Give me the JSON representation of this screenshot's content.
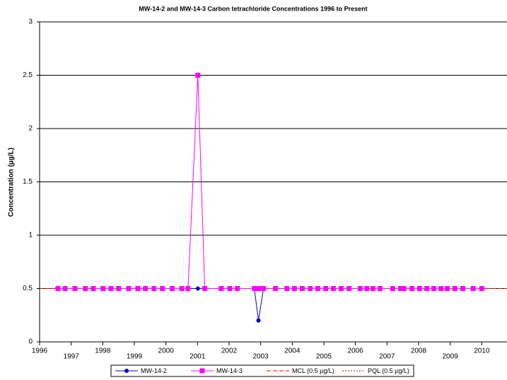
{
  "chart_data": {
    "type": "line",
    "title": "MW-14-2 and MW-14-3 Carbon tetrachloride Concentrations 1996 to Present",
    "y_label": "Concentration (µg/L)",
    "x": [
      1996.58,
      1996.81,
      1997.12,
      1997.45,
      1997.7,
      1998.01,
      1998.26,
      1998.5,
      1998.82,
      1999.11,
      1999.35,
      1999.62,
      1999.89,
      2000.2,
      2000.5,
      2000.7,
      2001.01,
      2001.23,
      2001.75,
      2002.02,
      2002.26,
      2002.8,
      2002.93,
      2003.09,
      2003.47,
      2003.83,
      2004.07,
      2004.32,
      2004.57,
      2004.81,
      2005.06,
      2005.3,
      2005.55,
      2005.8,
      2006.15,
      2006.36,
      2006.56,
      2006.78,
      2007.18,
      2007.43,
      2007.54,
      2007.79,
      2008.03,
      2008.26,
      2008.48,
      2008.71,
      2008.91,
      2009.15,
      2009.4,
      2009.73,
      2010.0
    ],
    "series": [
      {
        "name": "MW-14-2",
        "color": "#0000cc",
        "marker": "circle",
        "values": [
          0.5,
          0.5,
          0.5,
          0.5,
          0.5,
          0.5,
          0.5,
          0.5,
          0.5,
          0.5,
          0.5,
          0.5,
          0.5,
          0.5,
          0.5,
          0.5,
          0.5,
          0.5,
          0.5,
          0.5,
          0.5,
          0.5,
          0.2,
          0.5,
          0.5,
          0.5,
          0.5,
          0.5,
          0.5,
          0.5,
          0.5,
          0.5,
          0.5,
          0.5,
          0.5,
          0.5,
          0.5,
          0.5,
          0.5,
          0.5,
          0.5,
          0.5,
          0.5,
          0.5,
          0.5,
          0.5,
          0.5,
          0.5,
          0.5,
          0.5,
          0.5
        ]
      },
      {
        "name": "MW-14-3",
        "color": "#ff00ff",
        "marker": "square",
        "values": [
          0.5,
          0.5,
          0.5,
          0.5,
          0.5,
          0.5,
          0.5,
          0.5,
          0.5,
          0.5,
          0.5,
          0.5,
          0.5,
          0.5,
          0.5,
          0.5,
          2.5,
          0.5,
          0.5,
          0.5,
          0.5,
          0.5,
          0.5,
          0.5,
          0.5,
          0.5,
          0.5,
          0.5,
          0.5,
          0.5,
          0.5,
          0.5,
          0.5,
          0.5,
          0.5,
          0.5,
          0.5,
          0.5,
          0.5,
          0.5,
          0.5,
          0.5,
          0.5,
          0.5,
          0.5,
          0.5,
          0.5,
          0.5,
          0.5,
          0.5,
          0.5
        ]
      }
    ],
    "reference_lines": [
      {
        "name": "MCL (0.5 µg/L)",
        "value": 0.5,
        "color": "#ff0000",
        "dash": "dashed"
      },
      {
        "name": "PQL (0.5 µg/L)",
        "value": 0.5,
        "color": "#cc0000",
        "dash": "dotted"
      }
    ],
    "xlim": [
      1996,
      2010.8
    ],
    "xticks": [
      1996,
      1997,
      1998,
      1999,
      2000,
      2001,
      2002,
      2003,
      2004,
      2005,
      2006,
      2007,
      2008,
      2009,
      2010
    ],
    "ylim": [
      0,
      3
    ],
    "yticks": [
      0,
      0.5,
      1,
      1.5,
      2,
      2.5,
      3
    ],
    "grid": true,
    "legend": "bottom"
  }
}
